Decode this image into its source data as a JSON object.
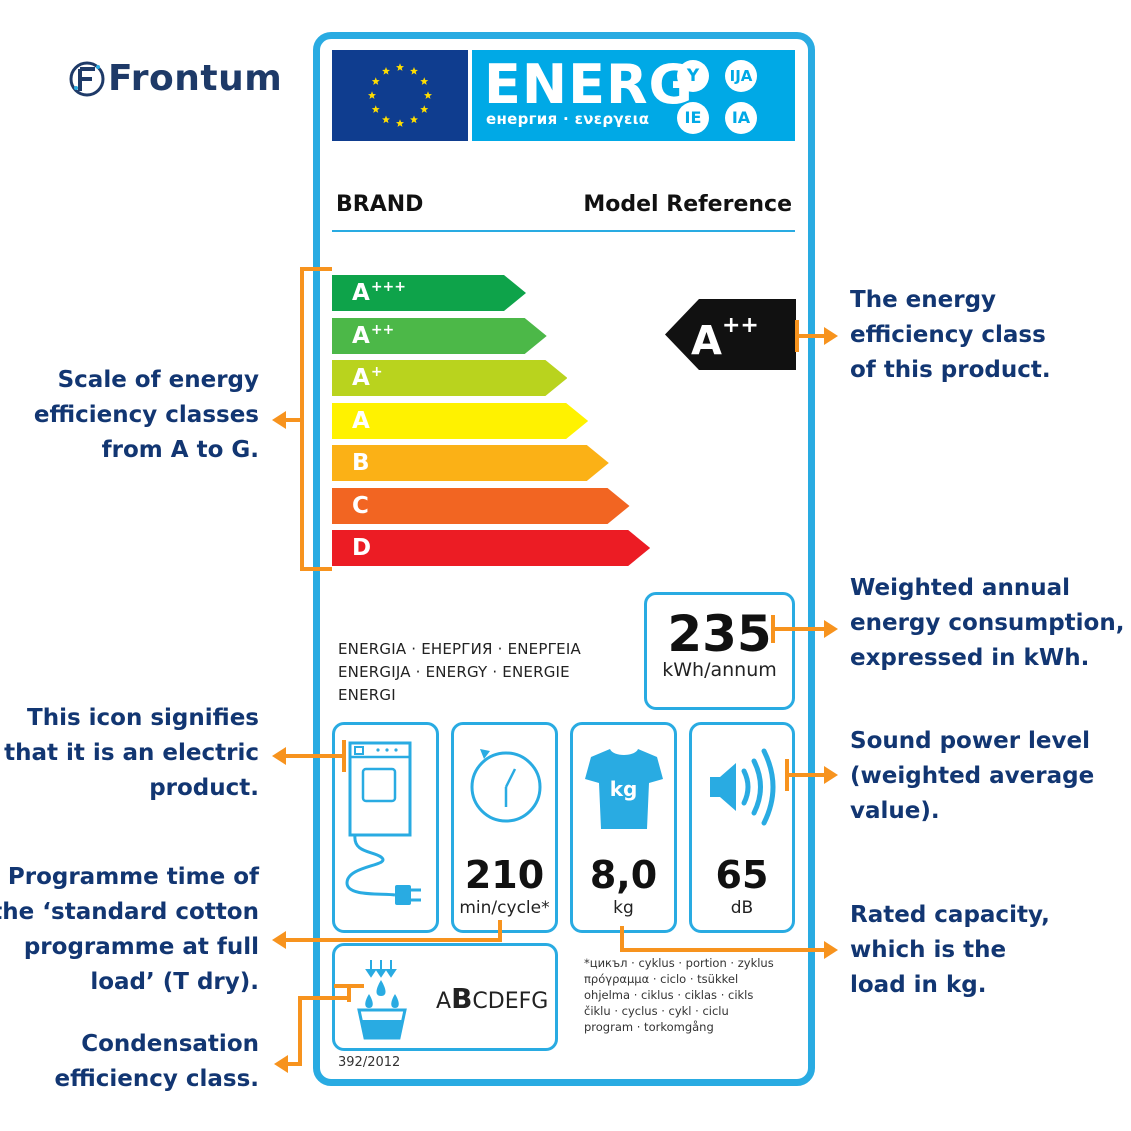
{
  "brand": {
    "name": "Frontum"
  },
  "label": {
    "banner": {
      "word": "ENERG",
      "subtitle": "енергия · ενεργεια",
      "suffixes": [
        "Y",
        "IJA",
        "IE",
        "IA"
      ]
    },
    "brand_text": "BRAND",
    "model_text": "Model Reference",
    "scale": [
      {
        "letter": "A",
        "plus": "+++",
        "color": "#0ea34a"
      },
      {
        "letter": "A",
        "plus": "++",
        "color": "#4cb848"
      },
      {
        "letter": "A",
        "plus": "+",
        "color": "#b9d31e"
      },
      {
        "letter": "A",
        "plus": "",
        "color": "#fff200"
      },
      {
        "letter": "B",
        "plus": "",
        "color": "#fbb116"
      },
      {
        "letter": "C",
        "plus": "",
        "color": "#f26522"
      },
      {
        "letter": "D",
        "plus": "",
        "color": "#ec1c24"
      }
    ],
    "product_class": {
      "letter": "A",
      "plus": "++"
    },
    "energy": {
      "value": "235",
      "unit": "kWh/annum"
    },
    "languages": [
      "ENERGIA · ЕНЕРГИЯ · ΕΝΕΡΓΕΙΑ",
      "ENERGIJA · ENERGY · ENERGIE",
      "ENERGI"
    ],
    "time": {
      "value": "210",
      "unit": "min/cycle*"
    },
    "capacity": {
      "value": "8,0",
      "unit": "kg",
      "icon_text": "kg"
    },
    "noise": {
      "value": "65",
      "unit": "dB"
    },
    "condensation": {
      "scale_first": "A",
      "scale_bold": "B",
      "scale_rest": "CDEFG"
    },
    "footnote": [
      "*цикъл · cyklus · portion · zyklus",
      "πρόγραμμα · ciclo · tsükkel",
      "ohjelma · ciklus · ciklas · cikls",
      "čiklu · cyclus · cykl · ciclu",
      "program · torkomgång"
    ],
    "regulation": "392/2012"
  },
  "annotations": {
    "scale": [
      "Scale of energy",
      "efficiency classes",
      "from A to G."
    ],
    "class": [
      "The energy",
      "efficiency class",
      "of this product."
    ],
    "consumption": [
      "Weighted annual",
      "energy consumption,",
      "expressed in kWh."
    ],
    "electric": [
      "This icon signifies",
      "that it is an electric",
      "product."
    ],
    "sound": [
      "Sound power level",
      "(weighted average",
      "value)."
    ],
    "programme": [
      "Programme time of",
      "the ‘standard cotton",
      "programme at full",
      "load’ (T dry)."
    ],
    "capacity": [
      "Rated capacity,",
      "which is the",
      "load in kg."
    ],
    "condensation": [
      "Condensation",
      "efficiency class."
    ]
  },
  "colors": {
    "label_border": "#29abe2",
    "banner": "#00a9e6",
    "eu_blue": "#0f3d8f",
    "arrow": "#f7931e",
    "annotation_text": "#123672"
  }
}
